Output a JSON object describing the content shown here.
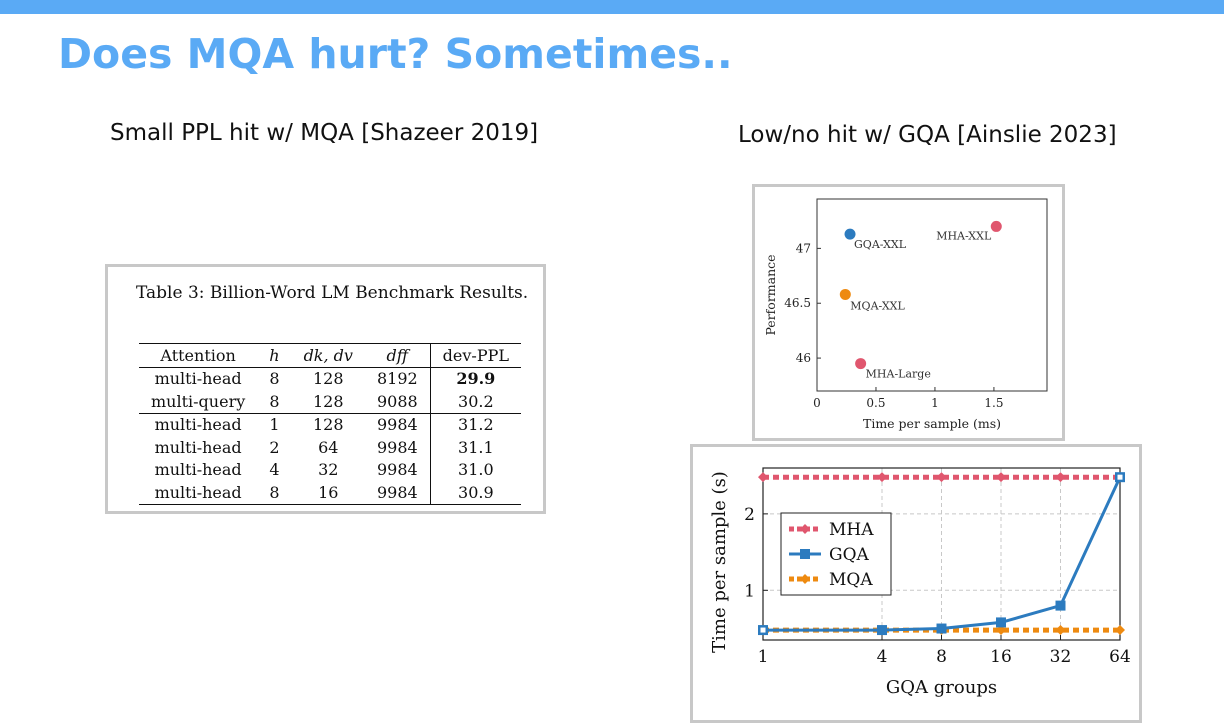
{
  "slide": {
    "title": "Does MQA hurt? Sometimes..",
    "left_subtitle": "Small PPL hit w/ MQA [Shazeer 2019]",
    "right_subtitle": "Low/no hit w/ GQA [Ainslie 2023]"
  },
  "table": {
    "caption": "Table 3:  Billion-Word LM Benchmark Results.",
    "headers": [
      "Attention",
      "h",
      "dk, dv",
      "dff",
      "dev-PPL"
    ],
    "rows": [
      [
        "multi-head",
        "8",
        "128",
        "8192",
        "29.9"
      ],
      [
        "multi-query",
        "8",
        "128",
        "9088",
        "30.2"
      ],
      [
        "multi-head",
        "1",
        "128",
        "9984",
        "31.2"
      ],
      [
        "multi-head",
        "2",
        "64",
        "9984",
        "31.1"
      ],
      [
        "multi-head",
        "4",
        "32",
        "9984",
        "31.0"
      ],
      [
        "multi-head",
        "8",
        "16",
        "9984",
        "30.9"
      ]
    ]
  },
  "chart_data": [
    {
      "type": "scatter",
      "xlabel": "Time per sample (ms)",
      "ylabel": "Performance",
      "xlim": [
        0,
        1.95
      ],
      "ylim": [
        45.7,
        47.45
      ],
      "xticks": [
        "0",
        "0.5",
        "1",
        "1.5"
      ],
      "yticks": [
        "46",
        "46.5",
        "47"
      ],
      "grid": false,
      "points": [
        {
          "label": "GQA-XXL",
          "x": 0.28,
          "y": 47.13,
          "color": "#2c7bbf"
        },
        {
          "label": "MHA-XXL",
          "x": 1.52,
          "y": 47.2,
          "color": "#e0566e"
        },
        {
          "label": "MQA-XXL",
          "x": 0.24,
          "y": 46.58,
          "color": "#ee8a10"
        },
        {
          "label": "MHA-Large",
          "x": 0.37,
          "y": 45.95,
          "color": "#e0566e"
        }
      ]
    },
    {
      "type": "line",
      "xlabel": "GQA groups",
      "ylabel": "Time per sample (s)",
      "x_scale": "log2",
      "x": [
        1,
        4,
        8,
        16,
        32,
        64
      ],
      "xticks": [
        "1",
        "4",
        "8",
        "16",
        "32",
        "64"
      ],
      "yticks": [
        "1",
        "2"
      ],
      "ylim": [
        0.35,
        2.6
      ],
      "grid": true,
      "legend": "upper-left",
      "series": [
        {
          "name": "MHA",
          "values": [
            2.48,
            2.48,
            2.48,
            2.48,
            2.48,
            2.48
          ],
          "color": "#e0566e",
          "style": "dashed"
        },
        {
          "name": "GQA",
          "values": [
            0.48,
            0.48,
            0.5,
            0.58,
            0.8,
            2.48
          ],
          "color": "#2c7bbf",
          "style": "solid"
        },
        {
          "name": "MQA",
          "values": [
            0.48,
            0.48,
            0.48,
            0.48,
            0.48,
            0.48
          ],
          "color": "#ee8a10",
          "style": "dashed"
        }
      ]
    }
  ]
}
